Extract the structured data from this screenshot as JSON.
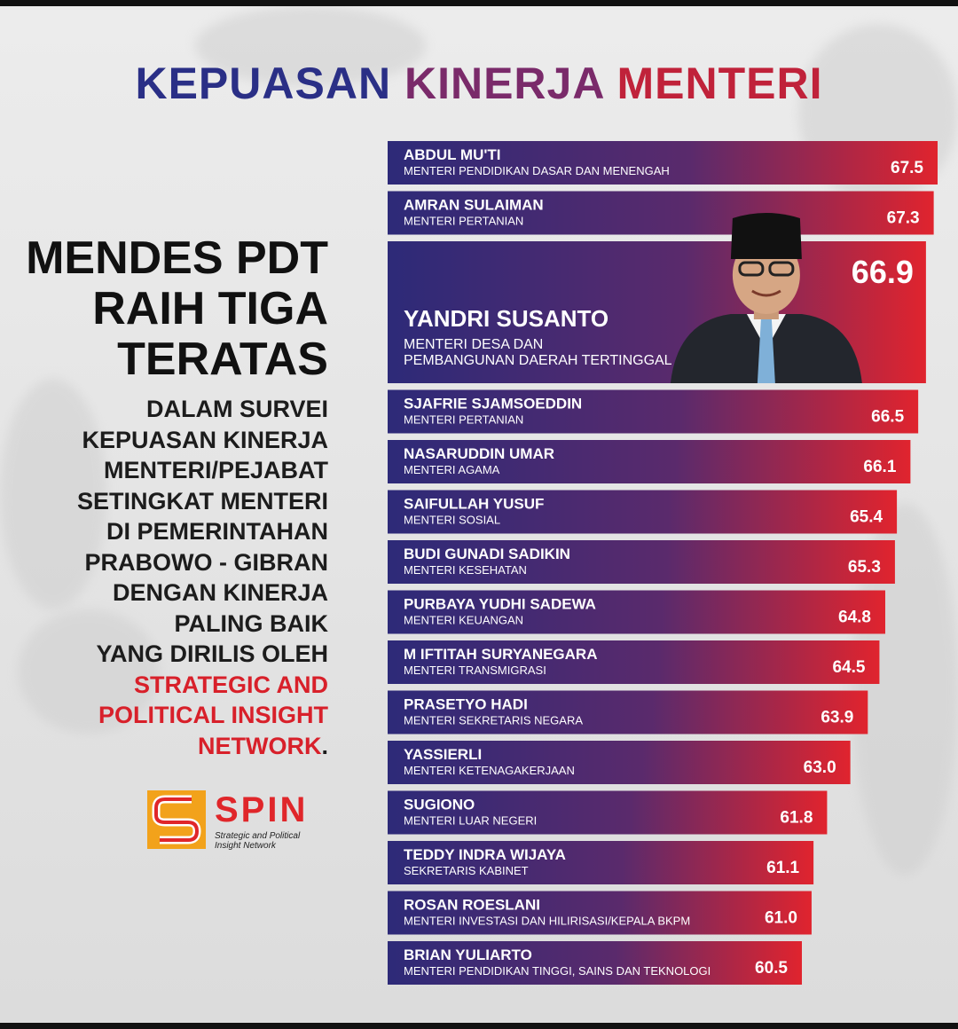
{
  "title": {
    "part1": "KEPUASAN",
    "part2": "KINERJA",
    "part3": "MENTERI"
  },
  "headline": [
    "MENDES PDT",
    "RAIH TIGA",
    "TERATAS"
  ],
  "description": {
    "lines": [
      "DALAM SURVEI",
      "KEPUASAN KINERJA",
      "MENTERI/PEJABAT",
      "SETINGKAT MENTERI",
      "DI PEMERINTAHAN",
      "PRABOWO - GIBRAN",
      "DENGAN KINERJA",
      "PALING BAIK",
      "YANG DIRILIS OLEH"
    ],
    "highlight_lines": [
      "STRATEGIC AND",
      "POLITICAL INSIGHT",
      "NETWORK"
    ],
    "end_punct": "."
  },
  "logo": {
    "name": "SPIN",
    "sub_line1": "Strategic and Political",
    "sub_line2": "Insight Network"
  },
  "colors": {
    "bar_start": "#2d2a78",
    "bar_end": "#e0242e",
    "title_blue": "#2a2f86",
    "accent_red": "#d8202a"
  },
  "chart_data": {
    "type": "bar",
    "orientation": "horizontal",
    "title": "KEPUASAN KINERJA MENTERI",
    "highlight_index": 2,
    "categories": [
      {
        "name": "ABDUL MU'TI",
        "position": "MENTERI PENDIDIKAN DASAR DAN MENENGAH"
      },
      {
        "name": "AMRAN SULAIMAN",
        "position": "MENTERI PERTANIAN"
      },
      {
        "name": "YANDRI SUSANTO",
        "position": "MENTERI DESA DAN",
        "position2": "PEMBANGUNAN DAERAH TERTINGGAL"
      },
      {
        "name": "SJAFRIE SJAMSOEDDIN",
        "position": "MENTERI PERTANIAN"
      },
      {
        "name": "NASARUDDIN UMAR",
        "position": "MENTERI AGAMA"
      },
      {
        "name": "SAIFULLAH YUSUF",
        "position": "MENTERI SOSIAL"
      },
      {
        "name": "BUDI GUNADI SADIKIN",
        "position": "MENTERI KESEHATAN"
      },
      {
        "name": "PURBAYA YUDHI SADEWA",
        "position": "MENTERI KEUANGAN"
      },
      {
        "name": "M IFTITAH SURYANEGARA",
        "position": "MENTERI TRANSMIGRASI"
      },
      {
        "name": "PRASETYO HADI",
        "position": "MENTERI SEKRETARIS NEGARA"
      },
      {
        "name": "YASSIERLI",
        "position": "MENTERI KETENAGAKERJAAN"
      },
      {
        "name": "SUGIONO",
        "position": "MENTERI LUAR NEGERI"
      },
      {
        "name": "TEDDY INDRA WIJAYA",
        "position": "SEKRETARIS KABINET"
      },
      {
        "name": "ROSAN ROESLANI",
        "position": "MENTERI INVESTASI DAN HILIRISASI/KEPALA BKPM"
      },
      {
        "name": "BRIAN YULIARTO",
        "position": "MENTERI PENDIDIKAN TINGGI, SAINS DAN TEKNOLOGI"
      }
    ],
    "values": [
      67.5,
      67.3,
      66.9,
      66.5,
      66.1,
      65.4,
      65.3,
      64.8,
      64.5,
      63.9,
      63.0,
      61.8,
      61.1,
      61.0,
      60.5
    ],
    "value_labels": [
      "67.5",
      "67.3",
      "66.9",
      "66.5",
      "66.1",
      "65.4",
      "65.3",
      "64.8",
      "64.5",
      "63.9",
      "63.0",
      "61.8",
      "61.1",
      "61.0",
      "60.5"
    ],
    "legend": "none",
    "grid": false
  }
}
